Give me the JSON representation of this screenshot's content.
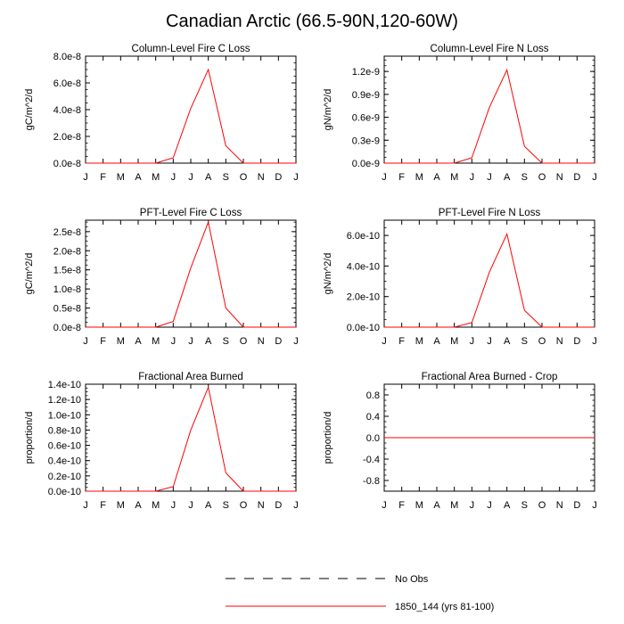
{
  "title": "Canadian Arctic (66.5-90N,120-60W)",
  "colors": {
    "model": "#ff0000",
    "obs": "#000000"
  },
  "months": [
    "J",
    "F",
    "M",
    "A",
    "M",
    "J",
    "J",
    "A",
    "S",
    "O",
    "N",
    "D",
    "J"
  ],
  "chart_data": [
    {
      "type": "line",
      "title": "Column-Level Fire C Loss",
      "ylabel": "gC/m^2/d",
      "ylim": [
        0,
        8e-08
      ],
      "yticks": [
        0,
        2e-08,
        4e-08,
        6e-08,
        8e-08
      ],
      "ytick_labels": [
        "0.0e-8",
        "2.0e-8",
        "4.0e-8",
        "6.0e-8",
        "8.0e-8"
      ],
      "series": [
        {
          "name": "1850_144 (yrs 81-100)",
          "values": [
            0,
            0,
            0,
            0,
            0,
            4e-09,
            4.1e-08,
            7e-08,
            1.3e-08,
            0,
            0,
            0,
            0
          ]
        }
      ]
    },
    {
      "type": "line",
      "title": "Column-Level Fire N Loss",
      "ylabel": "gN/m^2/d",
      "ylim": [
        0,
        1.4e-09
      ],
      "yticks": [
        0,
        3e-10,
        6e-10,
        9e-10,
        1.2e-09
      ],
      "ytick_labels": [
        "0.0e-9",
        "0.3e-9",
        "0.6e-9",
        "0.9e-9",
        "1.2e-9"
      ],
      "series": [
        {
          "name": "1850_144 (yrs 81-100)",
          "values": [
            0,
            0,
            0,
            0,
            0,
            7e-11,
            7.3e-10,
            1.22e-09,
            2.2e-10,
            0,
            0,
            0,
            0
          ]
        }
      ]
    },
    {
      "type": "line",
      "title": "PFT-Level Fire C Loss",
      "ylabel": "gC/m^2/d",
      "ylim": [
        0,
        2.8e-08
      ],
      "yticks": [
        0,
        5e-09,
        1e-08,
        1.5e-08,
        2e-08,
        2.5e-08
      ],
      "ytick_labels": [
        "0.0e-8",
        "0.5e-8",
        "1.0e-8",
        "1.5e-8",
        "2.0e-8",
        "2.5e-8"
      ],
      "series": [
        {
          "name": "1850_144 (yrs 81-100)",
          "values": [
            0,
            0,
            0,
            0,
            0,
            1.5e-09,
            1.55e-08,
            2.75e-08,
            5e-09,
            0,
            0,
            0,
            0
          ]
        }
      ]
    },
    {
      "type": "line",
      "title": "PFT-Level Fire N Loss",
      "ylabel": "gN/m^2/d",
      "ylim": [
        0,
        7e-10
      ],
      "yticks": [
        0,
        2e-10,
        4e-10,
        6e-10
      ],
      "ytick_labels": [
        "0.0e-10",
        "2.0e-10",
        "4.0e-10",
        "6.0e-10"
      ],
      "series": [
        {
          "name": "1850_144 (yrs 81-100)",
          "values": [
            0,
            0,
            0,
            0,
            0,
            3e-11,
            3.6e-10,
            6.1e-10,
            1.1e-10,
            0,
            0,
            0,
            0
          ]
        }
      ]
    },
    {
      "type": "line",
      "title": "Fractional Area Burned",
      "ylabel": "proportion/d",
      "ylim": [
        0,
        1.4e-10
      ],
      "yticks": [
        0,
        2e-11,
        4e-11,
        6e-11,
        8e-11,
        1e-10,
        1.2e-10,
        1.4e-10
      ],
      "ytick_labels": [
        "0.0e-10",
        "0.2e-10",
        "0.4e-10",
        "0.6e-10",
        "0.8e-10",
        "1.0e-10",
        "1.2e-10",
        "1.4e-10"
      ],
      "series": [
        {
          "name": "1850_144 (yrs 81-100)",
          "values": [
            0,
            0,
            0,
            0,
            0,
            6e-12,
            8e-11,
            1.36e-10,
            2.4e-11,
            0,
            0,
            0,
            0
          ]
        }
      ]
    },
    {
      "type": "line",
      "title": "Fractional Area Burned - Crop",
      "ylabel": "proportion/d",
      "ylim": [
        -1.0,
        1.0
      ],
      "yticks": [
        -0.8,
        -0.4,
        0,
        0.4,
        0.8
      ],
      "ytick_labels": [
        "-0.8",
        "-0.4",
        "0.0",
        "0.4",
        "0.8"
      ],
      "series": [
        {
          "name": "1850_144 (yrs 81-100)",
          "values": [
            0,
            0,
            0,
            0,
            0,
            0,
            0,
            0,
            0,
            0,
            0,
            0,
            0
          ]
        }
      ]
    }
  ],
  "legend": [
    {
      "label": "No Obs",
      "style": "dashed",
      "color": "#000000"
    },
    {
      "label": "1850_144 (yrs 81-100)",
      "style": "solid",
      "color": "#ff0000"
    }
  ]
}
